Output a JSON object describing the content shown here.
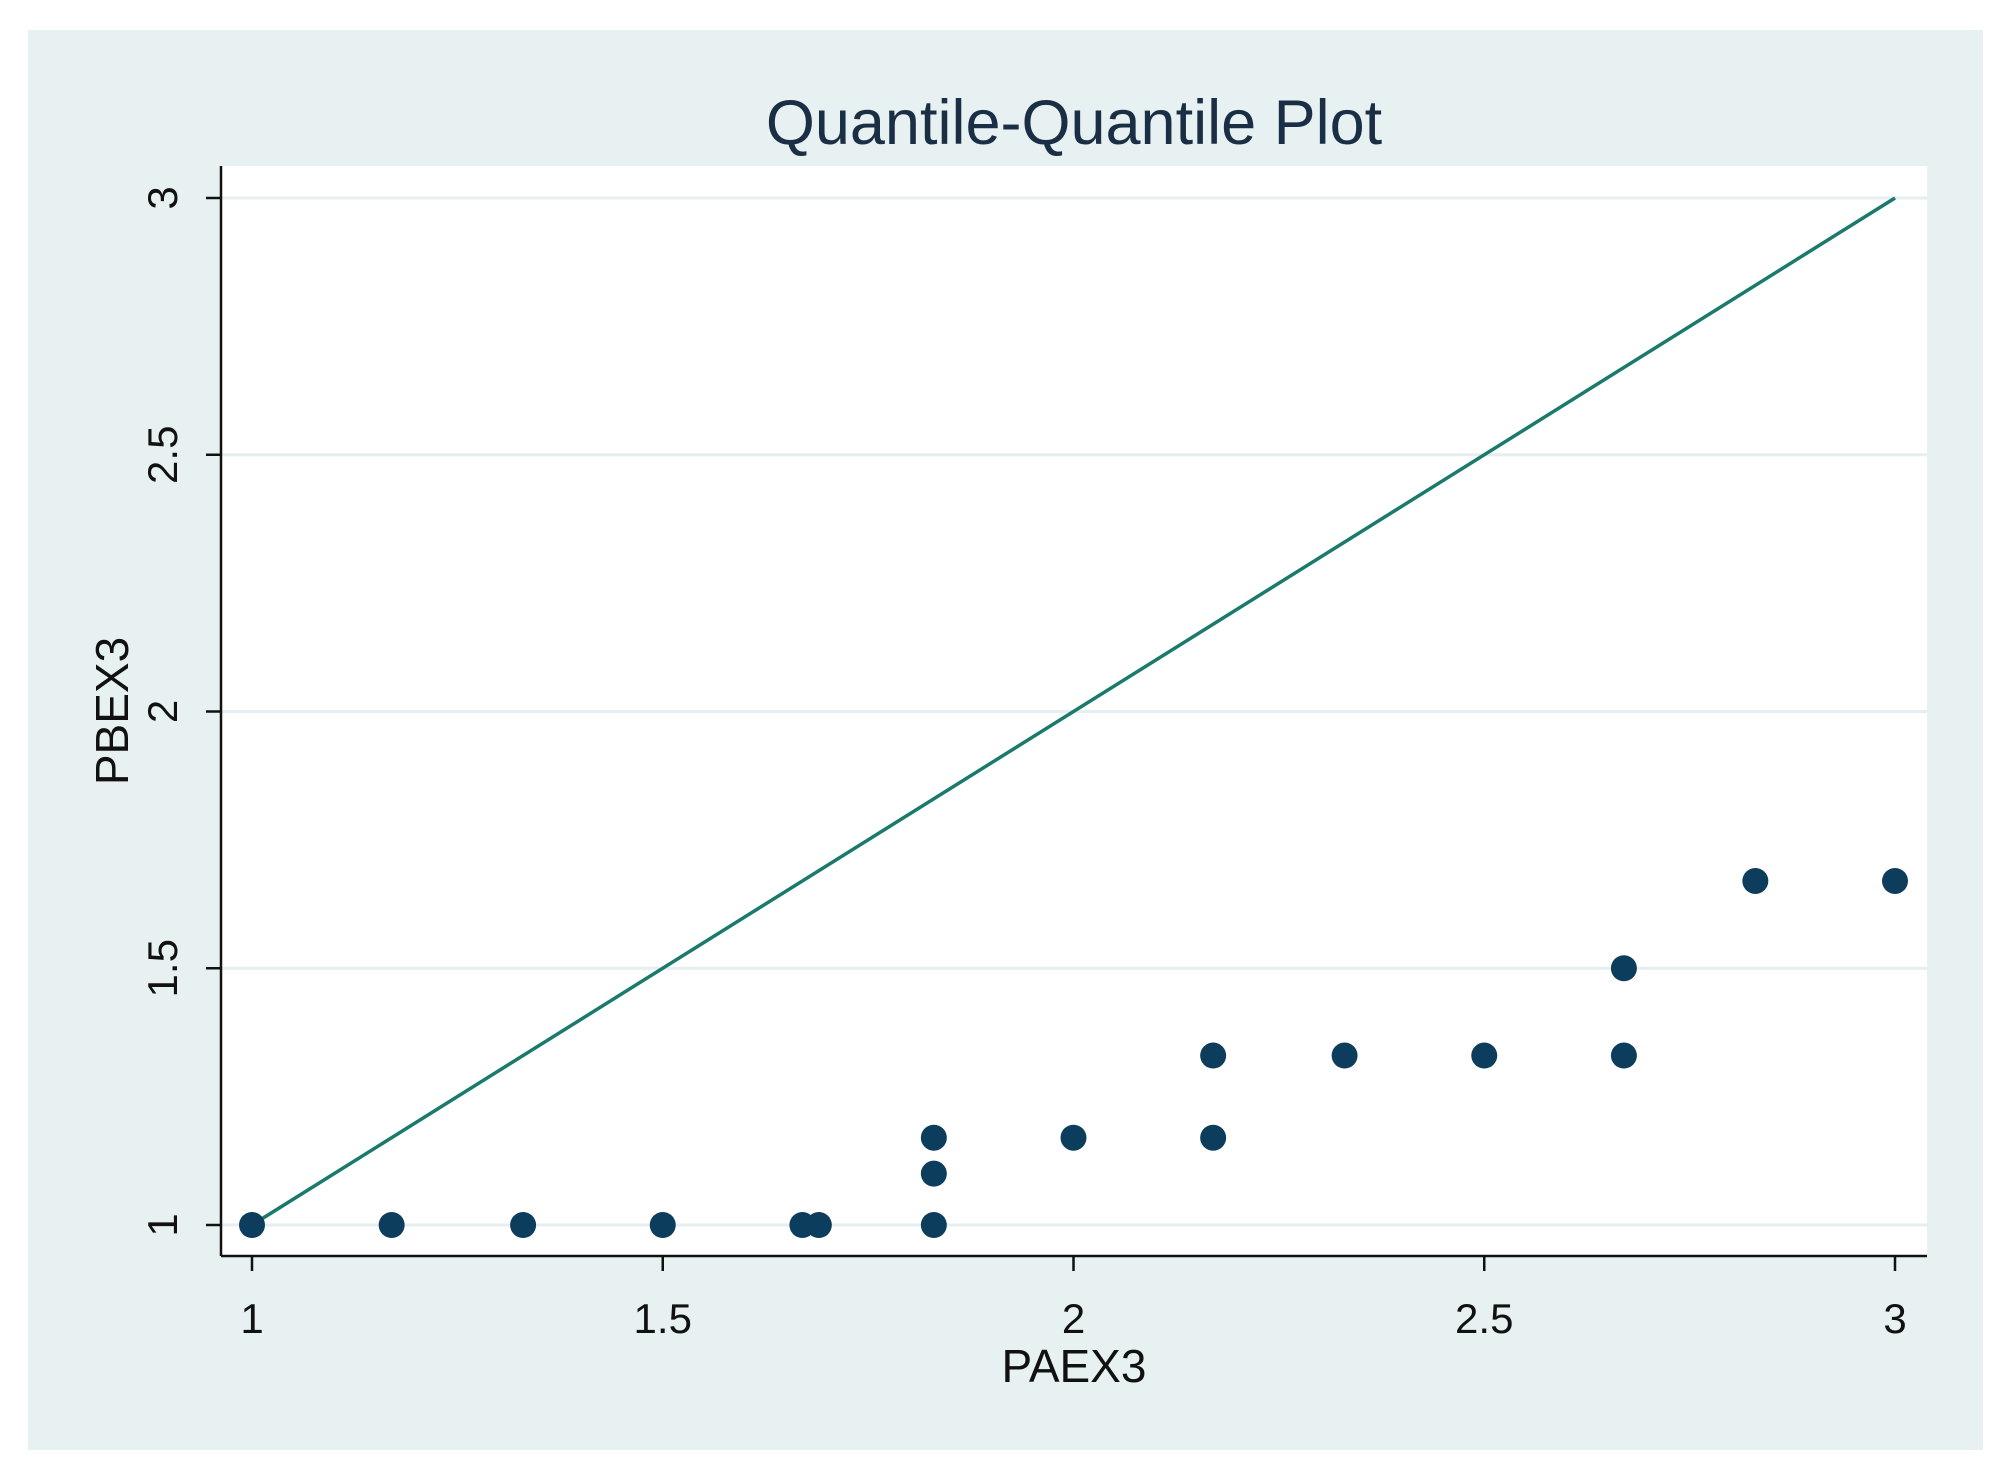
{
  "chart_data": {
    "type": "scatter",
    "title": "Quantile-Quantile Plot",
    "xlabel": "PAEX3",
    "ylabel": "PBEX3",
    "xlim": [
      1,
      3
    ],
    "ylim": [
      1,
      3
    ],
    "x_ticks": [
      "1",
      "1.5",
      "2",
      "2.5",
      "3"
    ],
    "y_ticks": [
      "1",
      "1.5",
      "2",
      "2.5",
      "3"
    ],
    "grid": "horizontal",
    "legend": "none",
    "reference_line": {
      "x": [
        1,
        3
      ],
      "y": [
        1,
        3
      ]
    },
    "series": [
      {
        "points": [
          [
            1.0,
            1.0
          ],
          [
            1.17,
            1.0
          ],
          [
            1.33,
            1.0
          ],
          [
            1.5,
            1.0
          ],
          [
            1.67,
            1.0
          ],
          [
            1.69,
            1.0
          ],
          [
            1.83,
            1.0
          ],
          [
            1.83,
            1.1
          ],
          [
            1.83,
            1.17
          ],
          [
            2.0,
            1.17
          ],
          [
            2.17,
            1.17
          ],
          [
            2.17,
            1.33
          ],
          [
            2.33,
            1.33
          ],
          [
            2.5,
            1.33
          ],
          [
            2.67,
            1.33
          ],
          [
            2.67,
            1.5
          ],
          [
            2.83,
            1.67
          ],
          [
            3.0,
            1.67
          ]
        ]
      }
    ],
    "colors": {
      "outer_background": "#e8f1f2",
      "plot_background": "#ffffff",
      "gridline": "#e6eef0",
      "marker": "#0d3d5c",
      "reference_line": "#1a7a6c",
      "axis": "#111111"
    }
  }
}
